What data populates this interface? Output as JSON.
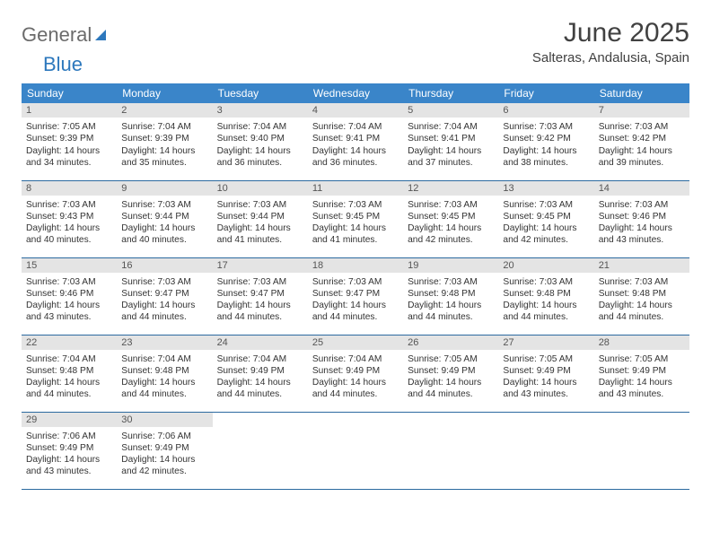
{
  "brand": {
    "part1": "General",
    "part2": "Blue"
  },
  "title": "June 2025",
  "location": "Salteras, Andalusia, Spain",
  "header_bg": "#3a85c9",
  "border_color": "#2c6aa0",
  "daynum_bg": "#e4e4e4",
  "weekdays": [
    "Sunday",
    "Monday",
    "Tuesday",
    "Wednesday",
    "Thursday",
    "Friday",
    "Saturday"
  ],
  "weeks": [
    [
      {
        "n": "1",
        "sr": "Sunrise: 7:05 AM",
        "ss": "Sunset: 9:39 PM",
        "d1": "Daylight: 14 hours",
        "d2": "and 34 minutes."
      },
      {
        "n": "2",
        "sr": "Sunrise: 7:04 AM",
        "ss": "Sunset: 9:39 PM",
        "d1": "Daylight: 14 hours",
        "d2": "and 35 minutes."
      },
      {
        "n": "3",
        "sr": "Sunrise: 7:04 AM",
        "ss": "Sunset: 9:40 PM",
        "d1": "Daylight: 14 hours",
        "d2": "and 36 minutes."
      },
      {
        "n": "4",
        "sr": "Sunrise: 7:04 AM",
        "ss": "Sunset: 9:41 PM",
        "d1": "Daylight: 14 hours",
        "d2": "and 36 minutes."
      },
      {
        "n": "5",
        "sr": "Sunrise: 7:04 AM",
        "ss": "Sunset: 9:41 PM",
        "d1": "Daylight: 14 hours",
        "d2": "and 37 minutes."
      },
      {
        "n": "6",
        "sr": "Sunrise: 7:03 AM",
        "ss": "Sunset: 9:42 PM",
        "d1": "Daylight: 14 hours",
        "d2": "and 38 minutes."
      },
      {
        "n": "7",
        "sr": "Sunrise: 7:03 AM",
        "ss": "Sunset: 9:42 PM",
        "d1": "Daylight: 14 hours",
        "d2": "and 39 minutes."
      }
    ],
    [
      {
        "n": "8",
        "sr": "Sunrise: 7:03 AM",
        "ss": "Sunset: 9:43 PM",
        "d1": "Daylight: 14 hours",
        "d2": "and 40 minutes."
      },
      {
        "n": "9",
        "sr": "Sunrise: 7:03 AM",
        "ss": "Sunset: 9:44 PM",
        "d1": "Daylight: 14 hours",
        "d2": "and 40 minutes."
      },
      {
        "n": "10",
        "sr": "Sunrise: 7:03 AM",
        "ss": "Sunset: 9:44 PM",
        "d1": "Daylight: 14 hours",
        "d2": "and 41 minutes."
      },
      {
        "n": "11",
        "sr": "Sunrise: 7:03 AM",
        "ss": "Sunset: 9:45 PM",
        "d1": "Daylight: 14 hours",
        "d2": "and 41 minutes."
      },
      {
        "n": "12",
        "sr": "Sunrise: 7:03 AM",
        "ss": "Sunset: 9:45 PM",
        "d1": "Daylight: 14 hours",
        "d2": "and 42 minutes."
      },
      {
        "n": "13",
        "sr": "Sunrise: 7:03 AM",
        "ss": "Sunset: 9:45 PM",
        "d1": "Daylight: 14 hours",
        "d2": "and 42 minutes."
      },
      {
        "n": "14",
        "sr": "Sunrise: 7:03 AM",
        "ss": "Sunset: 9:46 PM",
        "d1": "Daylight: 14 hours",
        "d2": "and 43 minutes."
      }
    ],
    [
      {
        "n": "15",
        "sr": "Sunrise: 7:03 AM",
        "ss": "Sunset: 9:46 PM",
        "d1": "Daylight: 14 hours",
        "d2": "and 43 minutes."
      },
      {
        "n": "16",
        "sr": "Sunrise: 7:03 AM",
        "ss": "Sunset: 9:47 PM",
        "d1": "Daylight: 14 hours",
        "d2": "and 44 minutes."
      },
      {
        "n": "17",
        "sr": "Sunrise: 7:03 AM",
        "ss": "Sunset: 9:47 PM",
        "d1": "Daylight: 14 hours",
        "d2": "and 44 minutes."
      },
      {
        "n": "18",
        "sr": "Sunrise: 7:03 AM",
        "ss": "Sunset: 9:47 PM",
        "d1": "Daylight: 14 hours",
        "d2": "and 44 minutes."
      },
      {
        "n": "19",
        "sr": "Sunrise: 7:03 AM",
        "ss": "Sunset: 9:48 PM",
        "d1": "Daylight: 14 hours",
        "d2": "and 44 minutes."
      },
      {
        "n": "20",
        "sr": "Sunrise: 7:03 AM",
        "ss": "Sunset: 9:48 PM",
        "d1": "Daylight: 14 hours",
        "d2": "and 44 minutes."
      },
      {
        "n": "21",
        "sr": "Sunrise: 7:03 AM",
        "ss": "Sunset: 9:48 PM",
        "d1": "Daylight: 14 hours",
        "d2": "and 44 minutes."
      }
    ],
    [
      {
        "n": "22",
        "sr": "Sunrise: 7:04 AM",
        "ss": "Sunset: 9:48 PM",
        "d1": "Daylight: 14 hours",
        "d2": "and 44 minutes."
      },
      {
        "n": "23",
        "sr": "Sunrise: 7:04 AM",
        "ss": "Sunset: 9:48 PM",
        "d1": "Daylight: 14 hours",
        "d2": "and 44 minutes."
      },
      {
        "n": "24",
        "sr": "Sunrise: 7:04 AM",
        "ss": "Sunset: 9:49 PM",
        "d1": "Daylight: 14 hours",
        "d2": "and 44 minutes."
      },
      {
        "n": "25",
        "sr": "Sunrise: 7:04 AM",
        "ss": "Sunset: 9:49 PM",
        "d1": "Daylight: 14 hours",
        "d2": "and 44 minutes."
      },
      {
        "n": "26",
        "sr": "Sunrise: 7:05 AM",
        "ss": "Sunset: 9:49 PM",
        "d1": "Daylight: 14 hours",
        "d2": "and 44 minutes."
      },
      {
        "n": "27",
        "sr": "Sunrise: 7:05 AM",
        "ss": "Sunset: 9:49 PM",
        "d1": "Daylight: 14 hours",
        "d2": "and 43 minutes."
      },
      {
        "n": "28",
        "sr": "Sunrise: 7:05 AM",
        "ss": "Sunset: 9:49 PM",
        "d1": "Daylight: 14 hours",
        "d2": "and 43 minutes."
      }
    ],
    [
      {
        "n": "29",
        "sr": "Sunrise: 7:06 AM",
        "ss": "Sunset: 9:49 PM",
        "d1": "Daylight: 14 hours",
        "d2": "and 43 minutes."
      },
      {
        "n": "30",
        "sr": "Sunrise: 7:06 AM",
        "ss": "Sunset: 9:49 PM",
        "d1": "Daylight: 14 hours",
        "d2": "and 42 minutes."
      },
      null,
      null,
      null,
      null,
      null
    ]
  ]
}
